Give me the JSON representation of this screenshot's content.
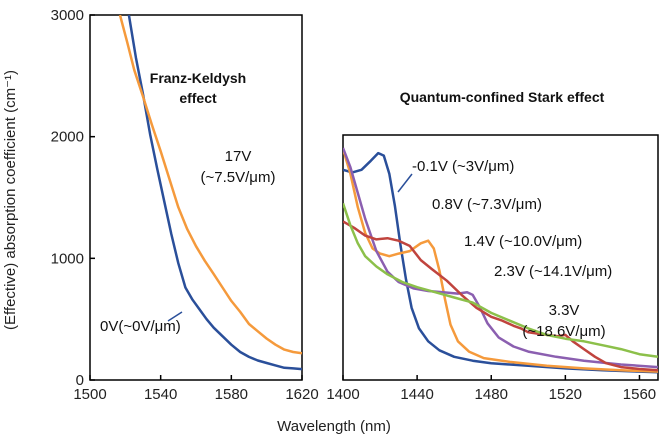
{
  "ylabel": "(Effective) absorption coefficient (cm⁻¹)",
  "xlabel": "Wavelength (nm)",
  "chart_data": [
    {
      "type": "line",
      "title": "Franz-Keldysh effect",
      "xlim": [
        1500,
        1620
      ],
      "ylim": [
        0,
        3000
      ],
      "xticks": [
        1500,
        1540,
        1580,
        1620
      ],
      "yticks": [
        0,
        1000,
        2000,
        3000
      ],
      "series": [
        {
          "name": "0V(~0V/μm)",
          "color": "#2a4f9a",
          "points": [
            [
              1522,
              3000
            ],
            [
              1526,
              2650
            ],
            [
              1530,
              2350
            ],
            [
              1534,
              2020
            ],
            [
              1538,
              1740
            ],
            [
              1542,
              1470
            ],
            [
              1546,
              1200
            ],
            [
              1550,
              960
            ],
            [
              1554,
              760
            ],
            [
              1558,
              660
            ],
            [
              1562,
              580
            ],
            [
              1566,
              500
            ],
            [
              1570,
              430
            ],
            [
              1575,
              360
            ],
            [
              1580,
              290
            ],
            [
              1585,
              230
            ],
            [
              1590,
              190
            ],
            [
              1595,
              160
            ],
            [
              1600,
              140
            ],
            [
              1605,
              120
            ],
            [
              1610,
              100
            ],
            [
              1615,
              95
            ],
            [
              1620,
              90
            ]
          ]
        },
        {
          "name": "17V (~7.5V/μm)",
          "color": "#f59a3c",
          "points": [
            [
              1517,
              3000
            ],
            [
              1521,
              2780
            ],
            [
              1525,
              2550
            ],
            [
              1530,
              2330
            ],
            [
              1535,
              2100
            ],
            [
              1540,
              1880
            ],
            [
              1545,
              1650
            ],
            [
              1550,
              1420
            ],
            [
              1555,
              1240
            ],
            [
              1560,
              1100
            ],
            [
              1565,
              980
            ],
            [
              1570,
              870
            ],
            [
              1575,
              760
            ],
            [
              1580,
              650
            ],
            [
              1585,
              560
            ],
            [
              1590,
              460
            ],
            [
              1595,
              400
            ],
            [
              1600,
              340
            ],
            [
              1605,
              290
            ],
            [
              1610,
              250
            ],
            [
              1615,
              230
            ],
            [
              1620,
              220
            ]
          ]
        }
      ]
    },
    {
      "type": "line",
      "title": "Quantum-confined Stark effect",
      "xlim": [
        1400,
        1570
      ],
      "ylim": [
        0,
        1900
      ],
      "xticks": [
        1400,
        1440,
        1480,
        1520,
        1560
      ],
      "series": [
        {
          "name": "-0.1V (~3V/μm)",
          "color": "#2a4f9a",
          "points": [
            [
              1400,
              1630
            ],
            [
              1405,
              1610
            ],
            [
              1410,
              1630
            ],
            [
              1415,
              1700
            ],
            [
              1419,
              1760
            ],
            [
              1422,
              1740
            ],
            [
              1425,
              1600
            ],
            [
              1428,
              1350
            ],
            [
              1431,
              1050
            ],
            [
              1434,
              780
            ],
            [
              1437,
              560
            ],
            [
              1441,
              400
            ],
            [
              1446,
              300
            ],
            [
              1452,
              230
            ],
            [
              1460,
              180
            ],
            [
              1470,
              150
            ],
            [
              1480,
              130
            ],
            [
              1500,
              110
            ],
            [
              1520,
              90
            ],
            [
              1540,
              75
            ],
            [
              1560,
              65
            ],
            [
              1570,
              60
            ]
          ]
        },
        {
          "name": "0.8V (~7.3V/μm)",
          "color": "#f59a3c",
          "points": [
            [
              1400,
              1790
            ],
            [
              1404,
              1600
            ],
            [
              1408,
              1340
            ],
            [
              1412,
              1140
            ],
            [
              1416,
              1020
            ],
            [
              1420,
              980
            ],
            [
              1425,
              960
            ],
            [
              1430,
              980
            ],
            [
              1436,
              1000
            ],
            [
              1442,
              1060
            ],
            [
              1446,
              1080
            ],
            [
              1449,
              1020
            ],
            [
              1452,
              850
            ],
            [
              1455,
              630
            ],
            [
              1458,
              430
            ],
            [
              1462,
              300
            ],
            [
              1468,
              220
            ],
            [
              1476,
              170
            ],
            [
              1490,
              140
            ],
            [
              1510,
              110
            ],
            [
              1530,
              90
            ],
            [
              1550,
              75
            ],
            [
              1570,
              65
            ]
          ]
        },
        {
          "name": "1.4V (~10.0V/μm)",
          "color": "#8b5fb0",
          "points": [
            [
              1400,
              1800
            ],
            [
              1404,
              1650
            ],
            [
              1408,
              1450
            ],
            [
              1412,
              1250
            ],
            [
              1418,
              1000
            ],
            [
              1424,
              840
            ],
            [
              1430,
              760
            ],
            [
              1438,
              710
            ],
            [
              1446,
              690
            ],
            [
              1454,
              680
            ],
            [
              1462,
              670
            ],
            [
              1467,
              680
            ],
            [
              1470,
              660
            ],
            [
              1474,
              560
            ],
            [
              1478,
              440
            ],
            [
              1484,
              330
            ],
            [
              1492,
              260
            ],
            [
              1500,
              220
            ],
            [
              1515,
              180
            ],
            [
              1530,
              150
            ],
            [
              1550,
              120
            ],
            [
              1570,
              100
            ]
          ]
        },
        {
          "name": "2.3V (~14.1V/μm)",
          "color": "#c0443e",
          "points": [
            [
              1400,
              1230
            ],
            [
              1406,
              1180
            ],
            [
              1412,
              1120
            ],
            [
              1418,
              1090
            ],
            [
              1424,
              1100
            ],
            [
              1430,
              1080
            ],
            [
              1436,
              1040
            ],
            [
              1442,
              930
            ],
            [
              1448,
              860
            ],
            [
              1456,
              770
            ],
            [
              1464,
              660
            ],
            [
              1472,
              560
            ],
            [
              1480,
              490
            ],
            [
              1486,
              460
            ],
            [
              1492,
              420
            ],
            [
              1496,
              400
            ],
            [
              1500,
              370
            ],
            [
              1505,
              360
            ],
            [
              1510,
              350
            ],
            [
              1516,
              340
            ],
            [
              1520,
              350
            ],
            [
              1524,
              300
            ],
            [
              1530,
              240
            ],
            [
              1536,
              180
            ],
            [
              1542,
              130
            ],
            [
              1550,
              100
            ],
            [
              1560,
              85
            ],
            [
              1570,
              75
            ]
          ]
        },
        {
          "name": "3.3V (~18.6V/μm)",
          "color": "#8cc04a",
          "points": [
            [
              1400,
              1370
            ],
            [
              1404,
              1200
            ],
            [
              1408,
              1060
            ],
            [
              1412,
              960
            ],
            [
              1418,
              880
            ],
            [
              1424,
              820
            ],
            [
              1432,
              760
            ],
            [
              1440,
              720
            ],
            [
              1450,
              680
            ],
            [
              1460,
              640
            ],
            [
              1470,
              600
            ],
            [
              1480,
              520
            ],
            [
              1490,
              460
            ],
            [
              1500,
              400
            ],
            [
              1510,
              350
            ],
            [
              1520,
              320
            ],
            [
              1530,
              300
            ],
            [
              1540,
              270
            ],
            [
              1550,
              240
            ],
            [
              1560,
              200
            ],
            [
              1570,
              180
            ]
          ]
        }
      ]
    }
  ]
}
